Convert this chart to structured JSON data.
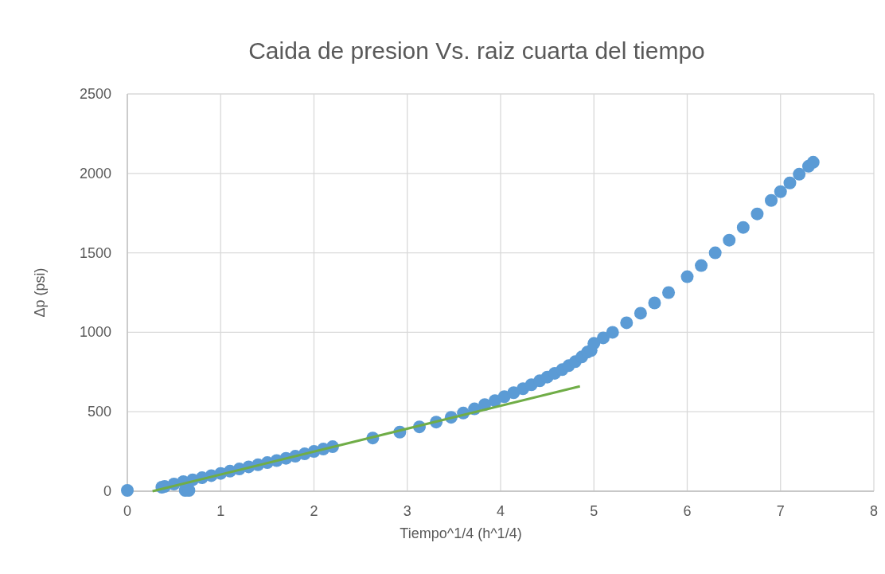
{
  "chart_data": {
    "type": "scatter",
    "title": "Caida de presion Vs. raiz cuarta del tiempo",
    "xlabel": "Tiempo^1/4  (h^1/4)",
    "ylabel": "Δp (psi)",
    "xlim": [
      0,
      8
    ],
    "xticks": [
      0,
      1,
      2,
      3,
      4,
      5,
      6,
      7,
      8
    ],
    "ylim": [
      0,
      2500
    ],
    "yticks": [
      0,
      500,
      1000,
      1500,
      2000,
      2500
    ],
    "grid": true,
    "marker": "circle",
    "series": [
      {
        "color": "#5b9bd5",
        "x": [
          0,
          0.37,
          0.62,
          0.66,
          0.4,
          0.5,
          0.6,
          0.7,
          0.8,
          0.9,
          1.0,
          1.1,
          1.2,
          1.3,
          1.4,
          1.5,
          1.6,
          1.7,
          1.8,
          1.9,
          2.0,
          2.1,
          2.2,
          2.63,
          2.92,
          3.13,
          3.31,
          3.47,
          3.6,
          3.72,
          3.83,
          3.94,
          4.04,
          4.14,
          4.24,
          4.33,
          4.42,
          4.5,
          4.58,
          4.66,
          4.73,
          4.8,
          4.87,
          4.93,
          4.97,
          5.0,
          5.1,
          5.2,
          5.35,
          5.5,
          5.65,
          5.8,
          6.0,
          6.15,
          6.3,
          6.45,
          6.6,
          6.75,
          6.9,
          7.0,
          7.1,
          7.2,
          7.3,
          7.35
        ],
        "values": [
          5,
          25,
          5,
          5,
          30,
          45,
          60,
          72,
          85,
          98,
          112,
          126,
          140,
          153,
          166,
          180,
          193,
          207,
          220,
          235,
          250,
          265,
          280,
          335,
          372,
          405,
          435,
          465,
          492,
          518,
          545,
          570,
          595,
          620,
          645,
          670,
          695,
          718,
          742,
          765,
          790,
          815,
          845,
          875,
          885,
          930,
          965,
          1000,
          1060,
          1120,
          1185,
          1250,
          1350,
          1420,
          1500,
          1580,
          1660,
          1745,
          1830,
          1885,
          1940,
          1995,
          2045,
          2070
        ]
      },
      {
        "type": "line",
        "color": "#70ad47",
        "x": [
          0.27,
          4.85
        ],
        "values": [
          0,
          660
        ],
        "marker": "none"
      }
    ]
  }
}
